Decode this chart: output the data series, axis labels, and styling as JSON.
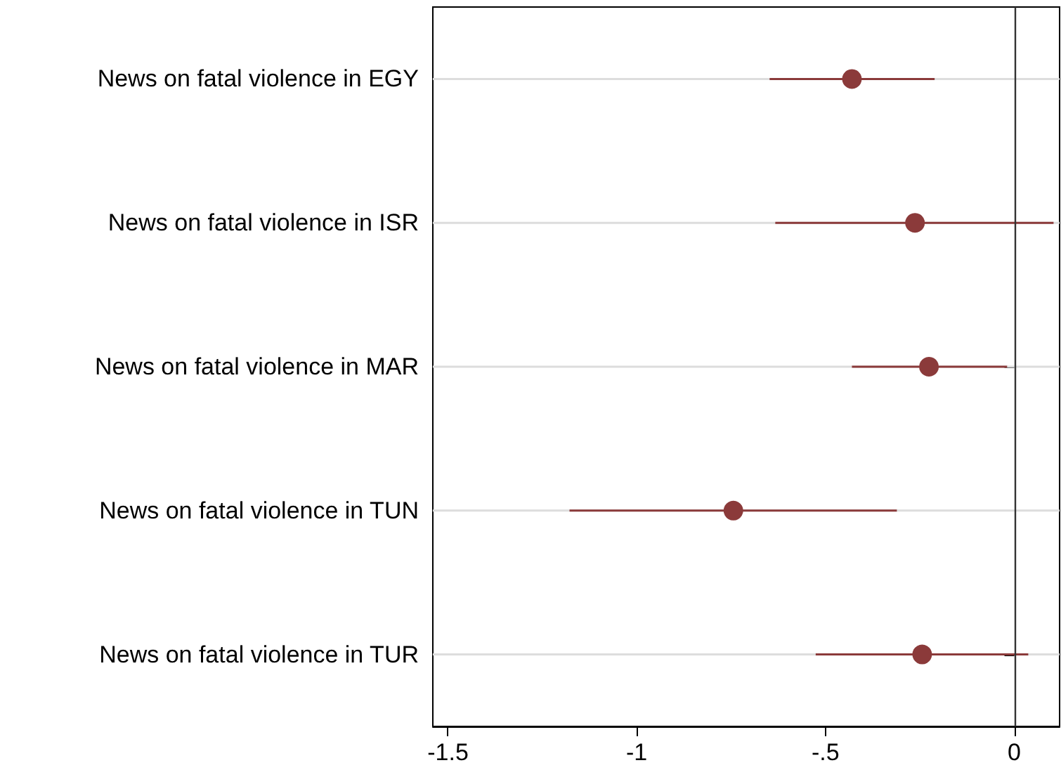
{
  "chart_data": {
    "type": "scatter",
    "orientation": "horizontal",
    "categories": [
      "News on fatal violence in EGY",
      "News on fatal violence in ISR",
      "News on fatal violence in MAR",
      "News on fatal violence in TUN",
      "News on fatal violence in TUR"
    ],
    "values": [
      -0.43,
      -0.263,
      -0.226,
      -0.744,
      -0.244
    ],
    "errors": [
      [
        -0.648,
        -0.211
      ],
      [
        -0.633,
        0.104
      ],
      [
        -0.43,
        -0.019
      ],
      [
        -1.178,
        -0.311
      ],
      [
        -0.526,
        0.037
      ]
    ],
    "color": "#8b3a3a",
    "marker": "circle",
    "grid": "y",
    "xlim": [
      -1.54,
      0.12
    ],
    "xticks": [
      -1.5,
      -1,
      {
        "value": -0.5,
        "label": "-.5"
      },
      0
    ],
    "ref_lines": [
      {
        "axis": "x",
        "value": 0,
        "color": "#333333"
      }
    ]
  }
}
